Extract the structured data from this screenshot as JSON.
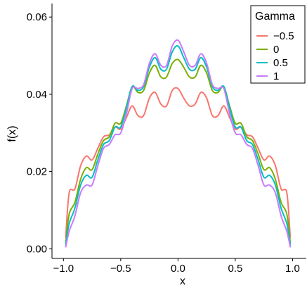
{
  "chart_data": {
    "type": "line",
    "xlabel": "x",
    "ylabel": "f(x)",
    "xlim": [
      -1.0,
      1.0
    ],
    "ylim": [
      0.0,
      0.06
    ],
    "x_ticks": [
      -1.0,
      -0.5,
      0.0,
      0.5,
      1.0
    ],
    "x_tick_labels": [
      "−1.0",
      "−0.5",
      "0.0",
      "0.5",
      "1.0"
    ],
    "y_ticks": [
      0.0,
      0.02,
      0.04,
      0.06
    ],
    "y_tick_labels": [
      "0.00",
      "0.02",
      "0.04",
      "0.06"
    ],
    "grid": false,
    "legend": {
      "title": "Gamma",
      "position": "top-right"
    },
    "series": [
      {
        "name": "−0.5",
        "color": "#F8766D",
        "x": [
          -0.98,
          -0.95,
          -0.9,
          -0.85,
          -0.8,
          -0.75,
          -0.7,
          -0.65,
          -0.6,
          -0.55,
          -0.5,
          -0.45,
          -0.4,
          -0.35,
          -0.3,
          -0.25,
          -0.2,
          -0.15,
          -0.1,
          -0.05,
          0.0,
          0.05,
          0.1,
          0.15,
          0.2,
          0.25,
          0.3,
          0.35,
          0.4,
          0.45,
          0.5,
          0.55,
          0.6,
          0.65,
          0.7,
          0.75,
          0.8,
          0.85,
          0.9,
          0.95,
          0.98
        ],
        "y": [
          0.003,
          0.0145,
          0.0155,
          0.0215,
          0.024,
          0.023,
          0.026,
          0.029,
          0.0295,
          0.0315,
          0.031,
          0.034,
          0.037,
          0.0345,
          0.0345,
          0.039,
          0.0405,
          0.0375,
          0.037,
          0.041,
          0.0415,
          0.039,
          0.037,
          0.0375,
          0.0405,
          0.039,
          0.0345,
          0.0345,
          0.037,
          0.034,
          0.031,
          0.0315,
          0.0295,
          0.029,
          0.026,
          0.023,
          0.024,
          0.0215,
          0.0155,
          0.0145,
          0.003
        ]
      },
      {
        "name": "0",
        "color": "#7CAE00",
        "x": [
          -0.98,
          -0.95,
          -0.9,
          -0.85,
          -0.8,
          -0.75,
          -0.7,
          -0.65,
          -0.6,
          -0.55,
          -0.5,
          -0.45,
          -0.4,
          -0.35,
          -0.3,
          -0.25,
          -0.2,
          -0.15,
          -0.1,
          -0.05,
          0.0,
          0.05,
          0.1,
          0.15,
          0.2,
          0.25,
          0.3,
          0.35,
          0.4,
          0.45,
          0.5,
          0.55,
          0.6,
          0.65,
          0.7,
          0.75,
          0.8,
          0.85,
          0.9,
          0.95,
          0.98
        ],
        "y": [
          0.0015,
          0.009,
          0.012,
          0.018,
          0.021,
          0.0205,
          0.0245,
          0.028,
          0.029,
          0.0325,
          0.0325,
          0.037,
          0.042,
          0.0405,
          0.041,
          0.0455,
          0.0475,
          0.0445,
          0.0445,
          0.048,
          0.049,
          0.047,
          0.0445,
          0.0445,
          0.0475,
          0.0455,
          0.041,
          0.0405,
          0.042,
          0.037,
          0.0325,
          0.0325,
          0.029,
          0.028,
          0.0245,
          0.0205,
          0.021,
          0.018,
          0.012,
          0.009,
          0.0015
        ]
      },
      {
        "name": "0.5",
        "color": "#00BFC4",
        "x": [
          -0.98,
          -0.95,
          -0.9,
          -0.85,
          -0.8,
          -0.75,
          -0.7,
          -0.65,
          -0.6,
          -0.55,
          -0.5,
          -0.45,
          -0.4,
          -0.35,
          -0.3,
          -0.25,
          -0.2,
          -0.15,
          -0.1,
          -0.05,
          0.0,
          0.05,
          0.1,
          0.15,
          0.2,
          0.25,
          0.3,
          0.35,
          0.4,
          0.45,
          0.5,
          0.55,
          0.6,
          0.65,
          0.7,
          0.75,
          0.8,
          0.85,
          0.9,
          0.95,
          0.98
        ],
        "y": [
          0.001,
          0.0065,
          0.0105,
          0.0165,
          0.019,
          0.0185,
          0.023,
          0.027,
          0.028,
          0.0315,
          0.0315,
          0.0365,
          0.042,
          0.041,
          0.042,
          0.047,
          0.0495,
          0.0465,
          0.0465,
          0.051,
          0.0525,
          0.0495,
          0.0465,
          0.0465,
          0.0495,
          0.047,
          0.042,
          0.041,
          0.042,
          0.0365,
          0.0315,
          0.0315,
          0.028,
          0.027,
          0.023,
          0.0185,
          0.019,
          0.0165,
          0.0105,
          0.0065,
          0.001
        ]
      },
      {
        "name": "1",
        "color": "#C77CFF",
        "x": [
          -0.98,
          -0.95,
          -0.9,
          -0.85,
          -0.8,
          -0.75,
          -0.7,
          -0.65,
          -0.6,
          -0.55,
          -0.5,
          -0.45,
          -0.4,
          -0.35,
          -0.3,
          -0.25,
          -0.2,
          -0.15,
          -0.1,
          -0.05,
          0.0,
          0.05,
          0.1,
          0.15,
          0.2,
          0.25,
          0.3,
          0.35,
          0.4,
          0.45,
          0.5,
          0.55,
          0.6,
          0.65,
          0.7,
          0.75,
          0.8,
          0.85,
          0.9,
          0.95,
          0.98
        ],
        "y": [
          0.0005,
          0.0045,
          0.0085,
          0.0145,
          0.0165,
          0.0165,
          0.0215,
          0.026,
          0.027,
          0.0295,
          0.03,
          0.035,
          0.0415,
          0.0415,
          0.0425,
          0.048,
          0.0505,
          0.0475,
          0.0475,
          0.0525,
          0.054,
          0.051,
          0.0475,
          0.0475,
          0.0505,
          0.048,
          0.0425,
          0.0415,
          0.0415,
          0.035,
          0.03,
          0.0295,
          0.027,
          0.026,
          0.0215,
          0.0165,
          0.0165,
          0.0145,
          0.0085,
          0.0045,
          0.0005
        ]
      }
    ]
  }
}
